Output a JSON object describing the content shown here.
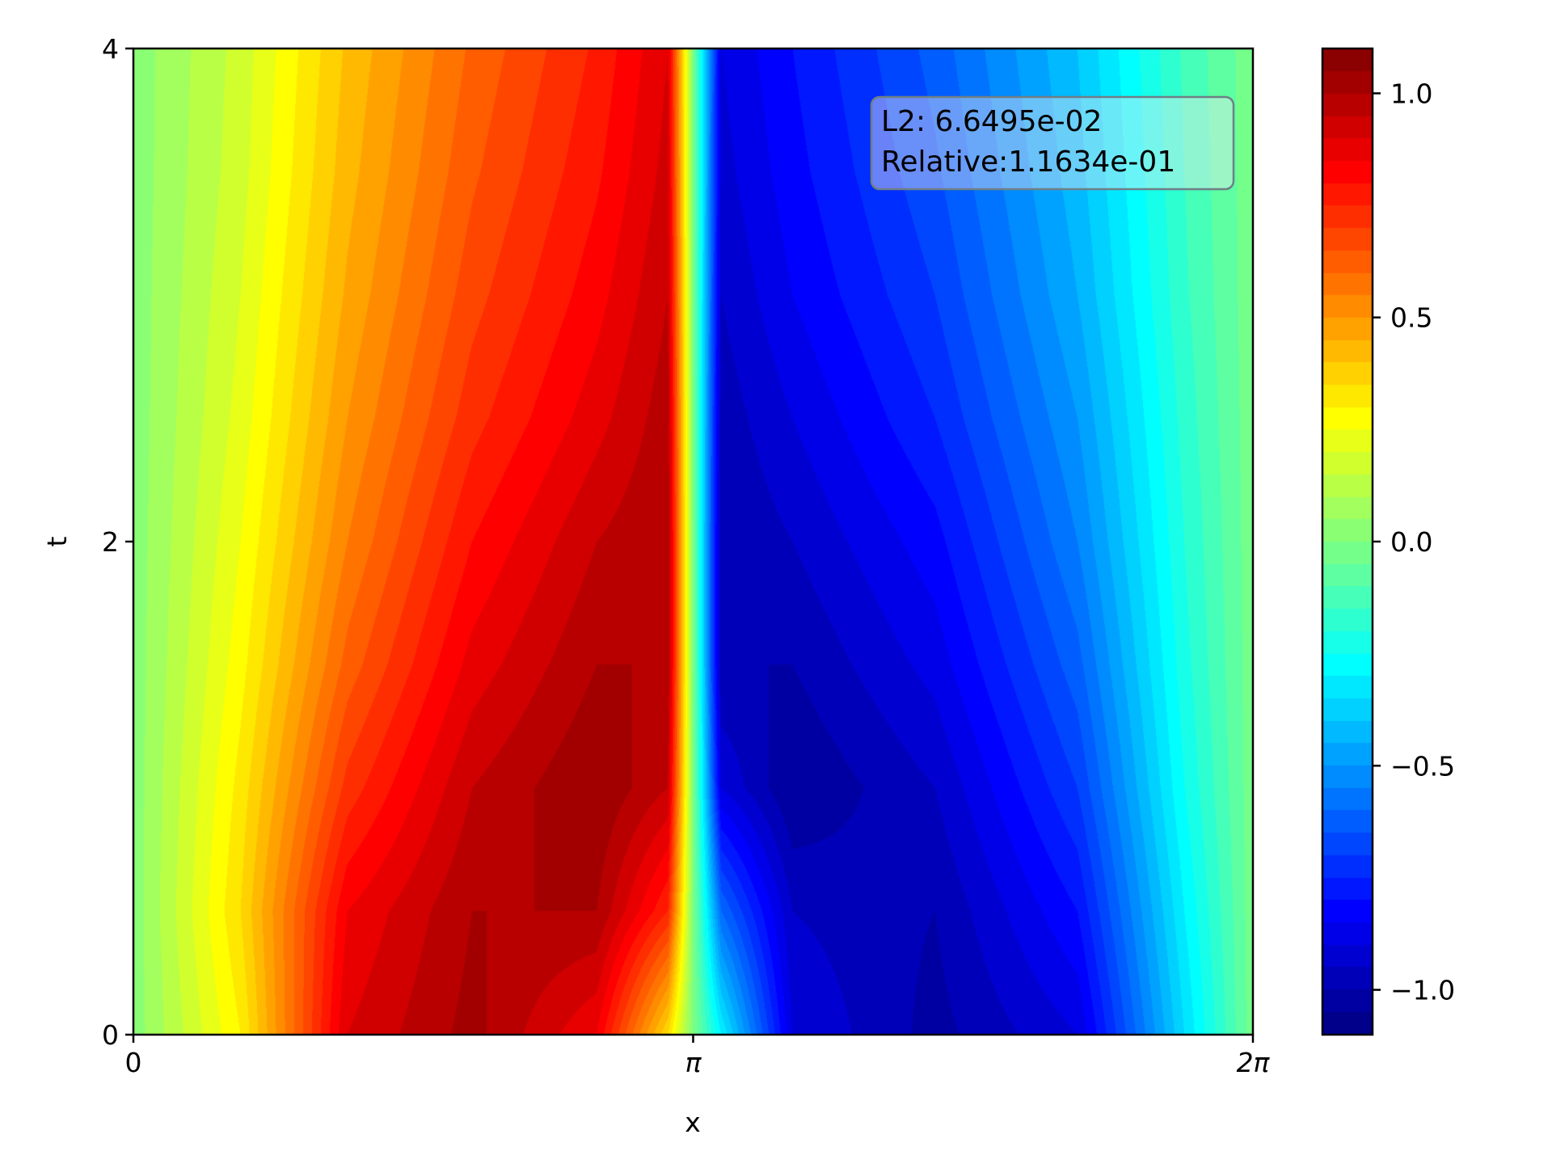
{
  "chart_data": {
    "type": "heatmap",
    "xlabel": "x",
    "ylabel": "t",
    "xlim": [
      0,
      6.283185307
    ],
    "ylim": [
      0,
      4
    ],
    "x_ticks": [
      {
        "value": 0,
        "label": "0"
      },
      {
        "value": 3.141592654,
        "label": "π"
      },
      {
        "value": 6.283185307,
        "label": "2π"
      }
    ],
    "y_ticks": [
      {
        "value": 0,
        "label": "0"
      },
      {
        "value": 2,
        "label": "2"
      },
      {
        "value": 4,
        "label": "4"
      }
    ],
    "colormap": "jet",
    "color_range": [
      -1.1,
      1.1
    ],
    "colorbar_ticks": [
      {
        "value": 1.0,
        "label": "1.0"
      },
      {
        "value": 0.5,
        "label": "0.5"
      },
      {
        "value": 0.0,
        "label": "0.0"
      },
      {
        "value": -0.5,
        "label": "−0.5"
      },
      {
        "value": -1.0,
        "label": "−1.0"
      }
    ],
    "annotation": {
      "line1": "L2: 6.6495e-02",
      "line2": "Relative:1.1634e-01"
    },
    "field": {
      "t": [
        0,
        0.5,
        1.0,
        1.5,
        2.0,
        2.5,
        3.0,
        3.5,
        4.0
      ],
      "profiles": [
        {
          "x": [
            0,
            0.6,
            1.2,
            1.9,
            2.6,
            3.0,
            3.14159,
            3.3,
            3.7,
            4.5,
            5.3,
            5.9,
            6.28319
          ],
          "u": [
            0.02,
            0.3,
            0.9,
            1.02,
            0.85,
            0.35,
            0.0,
            -0.3,
            -0.9,
            -1.02,
            -0.9,
            -0.35,
            -0.02
          ]
        },
        {
          "x": [
            0,
            0.6,
            1.2,
            1.9,
            2.6,
            3.0,
            3.14159,
            3.3,
            3.7,
            4.5,
            5.3,
            5.9,
            6.28319
          ],
          "u": [
            0.02,
            0.35,
            0.85,
            1.0,
            1.0,
            0.75,
            0.0,
            -0.6,
            -0.95,
            -1.0,
            -0.8,
            -0.3,
            -0.02
          ]
        },
        {
          "x": [
            0,
            0.6,
            1.2,
            1.9,
            2.6,
            3.0,
            3.14159,
            3.3,
            3.7,
            4.5,
            5.3,
            5.9,
            6.28319
          ],
          "u": [
            0.02,
            0.32,
            0.72,
            0.95,
            1.05,
            0.95,
            0.0,
            -0.9,
            -1.05,
            -0.95,
            -0.7,
            -0.25,
            -0.02
          ]
        },
        {
          "x": [
            0,
            0.6,
            1.2,
            1.9,
            2.6,
            3.0,
            3.14159,
            3.3,
            3.7,
            4.5,
            5.3,
            5.9,
            6.28319
          ],
          "u": [
            0.02,
            0.28,
            0.62,
            0.87,
            1.0,
            1.0,
            0.0,
            -1.0,
            -1.0,
            -0.88,
            -0.62,
            -0.22,
            -0.02
          ]
        },
        {
          "x": [
            0,
            0.6,
            1.2,
            1.9,
            2.6,
            3.0,
            3.14159,
            3.3,
            3.7,
            4.5,
            5.3,
            5.9,
            6.28319
          ],
          "u": [
            0.02,
            0.25,
            0.55,
            0.8,
            0.95,
            1.0,
            0.0,
            -1.0,
            -0.95,
            -0.82,
            -0.55,
            -0.2,
            -0.02
          ]
        },
        {
          "x": [
            0,
            0.6,
            1.2,
            1.9,
            2.6,
            3.0,
            3.14159,
            3.3,
            3.7,
            4.5,
            5.3,
            5.9,
            6.28319
          ],
          "u": [
            0.02,
            0.22,
            0.5,
            0.73,
            0.88,
            0.98,
            0.0,
            -0.98,
            -0.9,
            -0.75,
            -0.5,
            -0.18,
            -0.02
          ]
        },
        {
          "x": [
            0,
            0.6,
            1.2,
            1.9,
            2.6,
            3.0,
            3.14159,
            3.3,
            3.7,
            4.5,
            5.3,
            5.9,
            6.28319
          ],
          "u": [
            0.02,
            0.2,
            0.46,
            0.68,
            0.83,
            0.95,
            0.0,
            -0.95,
            -0.85,
            -0.7,
            -0.45,
            -0.16,
            -0.02
          ]
        },
        {
          "x": [
            0,
            0.6,
            1.2,
            1.9,
            2.6,
            3.0,
            3.14159,
            3.3,
            3.7,
            4.5,
            5.3,
            5.9,
            6.28319
          ],
          "u": [
            0.02,
            0.18,
            0.43,
            0.64,
            0.79,
            0.92,
            0.0,
            -0.92,
            -0.82,
            -0.66,
            -0.42,
            -0.15,
            -0.02
          ]
        },
        {
          "x": [
            0,
            0.6,
            1.2,
            1.9,
            2.6,
            3.0,
            3.14159,
            3.3,
            3.7,
            4.5,
            5.3,
            5.9,
            6.28319
          ],
          "u": [
            0.02,
            0.17,
            0.41,
            0.61,
            0.76,
            0.9,
            0.0,
            -0.9,
            -0.8,
            -0.63,
            -0.4,
            -0.14,
            -0.02
          ]
        }
      ]
    }
  }
}
